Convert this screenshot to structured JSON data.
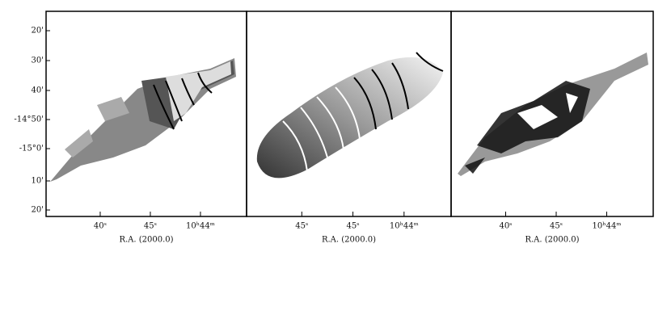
{
  "panels": [
    {
      "y_tick_labels": [
        "20'",
        "30'",
        "40'",
        "-14°50'",
        "-15°0'",
        "10'",
        "20'"
      ],
      "x_tick_labels": [
        "40ˢ",
        "45ˢ",
        "10ʰ44ᵐ"
      ],
      "x_label": "R.A. (2000.0)"
    },
    {
      "x_tick_labels": [
        "45ˢ",
        "45ˢ",
        "10ʰ44ᵐ"
      ],
      "x_label": "R.A. (2000.0)"
    },
    {
      "x_tick_labels": [
        "40ˢ",
        "45ˢ",
        "10ʰ44ᵐ"
      ],
      "x_label": "R.A. (2000.0)"
    }
  ]
}
